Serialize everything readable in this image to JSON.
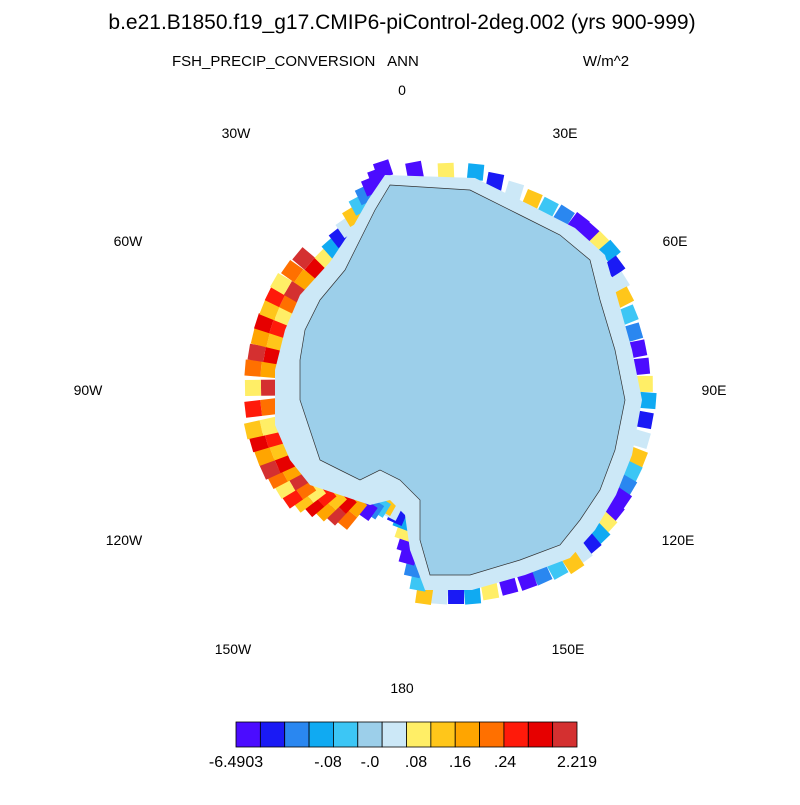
{
  "header": {
    "title": "b.e21.B1850.f19_g17.CMIP6-piControl-2deg.002 (yrs 900-999)",
    "left": "FSH_PRECIP_CONVERSION",
    "center": "ANN",
    "right": "W/m^2"
  },
  "map": {
    "longitude_labels": [
      "0",
      "30E",
      "60E",
      "90E",
      "120E",
      "150E",
      "180",
      "150W",
      "120W",
      "90W",
      "60W",
      "30W"
    ]
  },
  "colorbar": {
    "colors": [
      "#4b0cff",
      "#1a1af5",
      "#2a87f0",
      "#10aaf2",
      "#3cc6f5",
      "#9ccfea",
      "#cce8f7",
      "#ffee66",
      "#ffc61a",
      "#ffa500",
      "#ff7000",
      "#ff1a0a",
      "#e60000",
      "#d43030"
    ],
    "labels": [
      "-6.4903",
      "-.08",
      "-.0",
      ".08",
      ".16",
      ".24",
      "2.219"
    ]
  }
}
